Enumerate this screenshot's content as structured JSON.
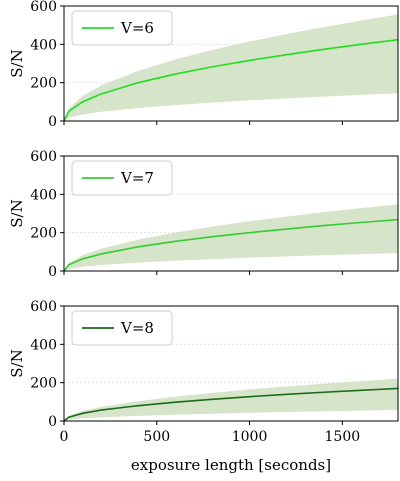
{
  "chart_data": [
    {
      "type": "area",
      "ylabel": "S/N",
      "xlim": [
        0,
        1800
      ],
      "ylim": [
        0,
        600
      ],
      "x_ticks": [
        "0",
        "500",
        "1000",
        "1500"
      ],
      "y_ticks": [
        "0",
        "200",
        "400",
        "600"
      ],
      "grid": "horizontal dotted",
      "legend_position": "top-left",
      "series": [
        {
          "name": "V=6",
          "color": "#22dd22",
          "x": [
            0,
            25,
            100,
            200,
            400,
            600,
            800,
            1000,
            1200,
            1400,
            1600,
            1800
          ],
          "y": [
            0,
            50,
            100,
            141,
            200,
            245,
            283,
            316,
            346,
            374,
            400,
            424
          ],
          "band_upper": [
            0,
            66,
            131,
            185,
            262,
            321,
            371,
            415,
            454,
            490,
            524,
            556
          ],
          "band_lower": [
            0,
            17,
            34,
            48,
            68,
            83,
            96,
            108,
            118,
            127,
            136,
            144
          ]
        }
      ]
    },
    {
      "type": "area",
      "ylabel": "S/N",
      "xlim": [
        0,
        1800
      ],
      "ylim": [
        0,
        600
      ],
      "x_ticks": [
        "0",
        "500",
        "1000",
        "1500"
      ],
      "y_ticks": [
        "0",
        "200",
        "400",
        "600"
      ],
      "grid": "horizontal dotted",
      "legend_position": "top-left",
      "series": [
        {
          "name": "V=7",
          "color": "#33cc33",
          "x": [
            0,
            25,
            100,
            200,
            400,
            600,
            800,
            1000,
            1200,
            1400,
            1600,
            1800
          ],
          "y": [
            0,
            32,
            63,
            89,
            126,
            155,
            179,
            200,
            219,
            237,
            253,
            268
          ],
          "band_upper": [
            0,
            41,
            82,
            116,
            164,
            201,
            232,
            260,
            284,
            307,
            328,
            348
          ],
          "band_lower": [
            0,
            11,
            22,
            31,
            44,
            54,
            62,
            70,
            76,
            82,
            88,
            93
          ]
        }
      ]
    },
    {
      "type": "area",
      "ylabel": "S/N",
      "xlabel": "exposure length [seconds]",
      "xlim": [
        0,
        1800
      ],
      "ylim": [
        0,
        600
      ],
      "x_ticks": [
        "0",
        "500",
        "1000",
        "1500"
      ],
      "y_ticks": [
        "0",
        "200",
        "400",
        "600"
      ],
      "grid": "horizontal dotted",
      "legend_position": "top-left",
      "series": [
        {
          "name": "V=8",
          "color": "#1a6b1a",
          "x": [
            0,
            25,
            100,
            200,
            400,
            600,
            800,
            1000,
            1200,
            1400,
            1600,
            1800
          ],
          "y": [
            0,
            20,
            40,
            57,
            80,
            98,
            113,
            127,
            139,
            150,
            160,
            170
          ],
          "band_upper": [
            0,
            26,
            52,
            73,
            104,
            127,
            147,
            165,
            180,
            195,
            208,
            221
          ],
          "band_lower": [
            0,
            7,
            14,
            19,
            27,
            33,
            38,
            43,
            47,
            51,
            54,
            58
          ]
        }
      ]
    }
  ],
  "colors": {
    "band_fill": "#cfdfbf",
    "grid": "#d9d9d9"
  }
}
